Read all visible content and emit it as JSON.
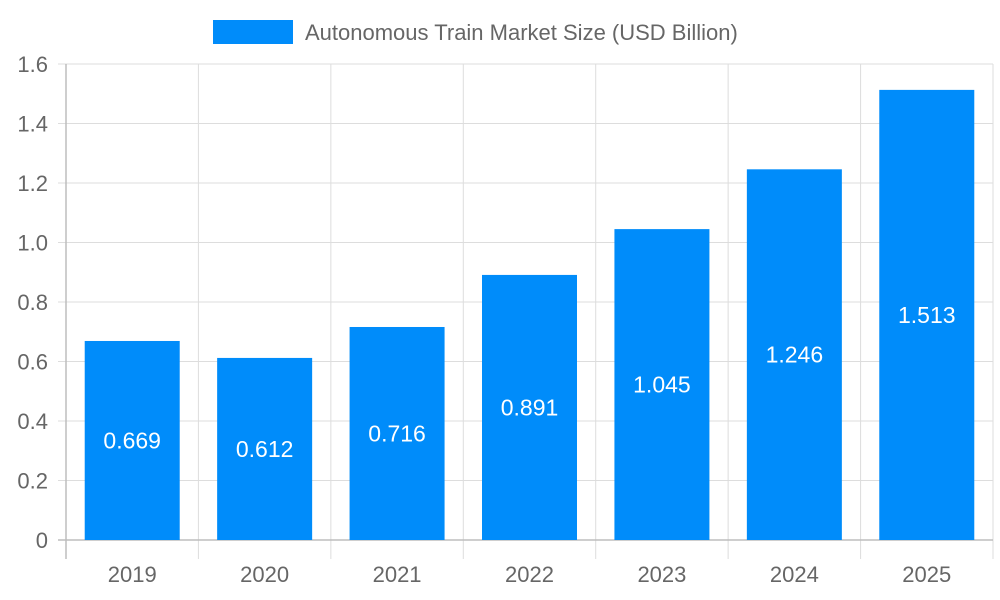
{
  "chart_data": {
    "type": "bar",
    "categories": [
      "2019",
      "2020",
      "2021",
      "2022",
      "2023",
      "2024",
      "2025"
    ],
    "series": [
      {
        "name": "Autonomous Train Market Size (USD Billion)",
        "values": [
          0.669,
          0.612,
          0.716,
          0.891,
          1.045,
          1.246,
          1.513
        ],
        "data_labels": [
          "0.669",
          "0.612",
          "0.716",
          "0.891",
          "1.045",
          "1.246",
          "1.513"
        ],
        "color": "#008cfa"
      }
    ],
    "y_ticks": [
      "0",
      "0.2",
      "0.4",
      "0.6",
      "0.8",
      "1.0",
      "1.2",
      "1.4",
      "1.6"
    ],
    "ylim": [
      0,
      1.6
    ],
    "grid": true,
    "legend_position": "top"
  }
}
